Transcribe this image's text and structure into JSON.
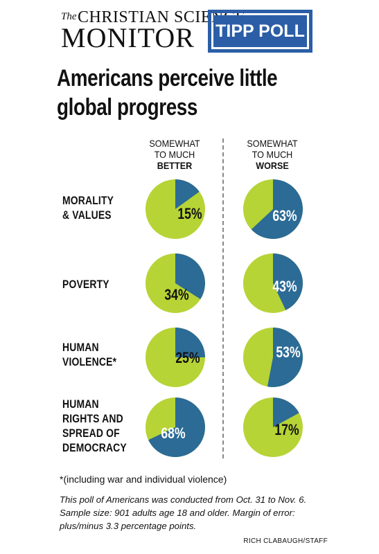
{
  "masthead": {
    "logo_the": "The",
    "logo_line1": "CHRISTIAN SCIENCE",
    "logo_line2": "MONITOR",
    "badge": "TIPP POLL"
  },
  "headline": "Americans perceive little global progress",
  "columns": {
    "better": {
      "line1": "SOMEWHAT",
      "line2": "TO MUCH",
      "emphasis": "BETTER"
    },
    "worse": {
      "line1": "SOMEWHAT",
      "line2": "TO MUCH",
      "emphasis": "WORSE"
    }
  },
  "rows": [
    {
      "label_lines": [
        "MORALITY",
        "& VALUES"
      ]
    },
    {
      "label_lines": [
        "POVERTY"
      ]
    },
    {
      "label_lines": [
        "HUMAN",
        "VIOLENCE*"
      ]
    },
    {
      "label_lines": [
        "HUMAN",
        "RIGHTS AND",
        "SPREAD OF",
        "DEMOCRACY"
      ]
    }
  ],
  "colors": {
    "blue": "#2b6b96",
    "green": "#b6d435",
    "accent": "#2b5ea6"
  },
  "chart_data": {
    "type": "pie",
    "categories": [
      "Morality & Values",
      "Poverty",
      "Human Violence*",
      "Human Rights and Spread of Democracy"
    ],
    "series": [
      {
        "name": "Somewhat to much better",
        "values": [
          15,
          34,
          25,
          68
        ],
        "labels": [
          "15%",
          "34%",
          "25%",
          "68%"
        ]
      },
      {
        "name": "Somewhat to much worse",
        "values": [
          63,
          43,
          53,
          17
        ],
        "labels": [
          "63%",
          "43%",
          "53%",
          "17%"
        ]
      }
    ]
  },
  "footnote": "*(including war and individual violence)",
  "note": "This poll of Americans was conducted from Oct. 31 to Nov. 6. Sample size: 901 adults age 18 and older. Margin of error: plus/minus 3.3 percentage points.",
  "credit": "RICH CLABAUGH/STAFF"
}
